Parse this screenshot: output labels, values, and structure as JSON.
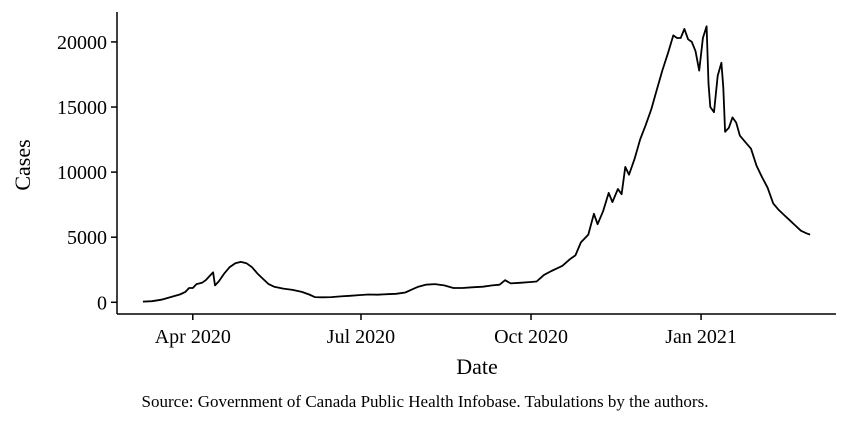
{
  "chart_data": {
    "type": "line",
    "xlabel": "Date",
    "ylabel": "Cases",
    "xlim": [
      "2020-02-20",
      "2021-03-15"
    ],
    "ylim": [
      -900,
      22300
    ],
    "x_ticks": [
      {
        "date": "2020-04-01",
        "label": "Apr 2020"
      },
      {
        "date": "2020-07-01",
        "label": "Jul 2020"
      },
      {
        "date": "2020-10-01",
        "label": "Oct 2020"
      },
      {
        "date": "2021-01-01",
        "label": "Jan 2021"
      }
    ],
    "y_ticks": [
      0,
      5000,
      10000,
      15000,
      20000
    ],
    "y_tick_labels": [
      "0",
      "5000",
      "10000",
      "15000",
      "20000"
    ],
    "grid": false,
    "line_color": "#000000",
    "series": [
      {
        "points": [
          [
            "2020-03-05",
            50
          ],
          [
            "2020-03-10",
            80
          ],
          [
            "2020-03-15",
            200
          ],
          [
            "2020-03-20",
            400
          ],
          [
            "2020-03-25",
            600
          ],
          [
            "2020-03-28",
            800
          ],
          [
            "2020-03-30",
            1100
          ],
          [
            "2020-04-01",
            1100
          ],
          [
            "2020-04-03",
            1400
          ],
          [
            "2020-04-06",
            1500
          ],
          [
            "2020-04-08",
            1700
          ],
          [
            "2020-04-10",
            2000
          ],
          [
            "2020-04-12",
            2300
          ],
          [
            "2020-04-13",
            1300
          ],
          [
            "2020-04-15",
            1600
          ],
          [
            "2020-04-18",
            2200
          ],
          [
            "2020-04-21",
            2700
          ],
          [
            "2020-04-24",
            3000
          ],
          [
            "2020-04-27",
            3100
          ],
          [
            "2020-04-30",
            3000
          ],
          [
            "2020-05-03",
            2700
          ],
          [
            "2020-05-06",
            2200
          ],
          [
            "2020-05-09",
            1800
          ],
          [
            "2020-05-12",
            1400
          ],
          [
            "2020-05-15",
            1200
          ],
          [
            "2020-05-20",
            1050
          ],
          [
            "2020-05-25",
            950
          ],
          [
            "2020-05-30",
            800
          ],
          [
            "2020-06-03",
            600
          ],
          [
            "2020-06-06",
            400
          ],
          [
            "2020-06-10",
            380
          ],
          [
            "2020-06-15",
            400
          ],
          [
            "2020-06-20",
            450
          ],
          [
            "2020-06-25",
            500
          ],
          [
            "2020-06-30",
            550
          ],
          [
            "2020-07-05",
            600
          ],
          [
            "2020-07-10",
            580
          ],
          [
            "2020-07-15",
            620
          ],
          [
            "2020-07-20",
            650
          ],
          [
            "2020-07-25",
            750
          ],
          [
            "2020-07-28",
            950
          ],
          [
            "2020-08-01",
            1200
          ],
          [
            "2020-08-05",
            1350
          ],
          [
            "2020-08-10",
            1400
          ],
          [
            "2020-08-15",
            1300
          ],
          [
            "2020-08-20",
            1100
          ],
          [
            "2020-08-25",
            1100
          ],
          [
            "2020-08-30",
            1150
          ],
          [
            "2020-09-05",
            1200
          ],
          [
            "2020-09-10",
            1300
          ],
          [
            "2020-09-14",
            1350
          ],
          [
            "2020-09-17",
            1700
          ],
          [
            "2020-09-20",
            1450
          ],
          [
            "2020-09-25",
            1500
          ],
          [
            "2020-09-30",
            1550
          ],
          [
            "2020-10-04",
            1600
          ],
          [
            "2020-10-08",
            2100
          ],
          [
            "2020-10-12",
            2400
          ],
          [
            "2020-10-15",
            2600
          ],
          [
            "2020-10-18",
            2800
          ],
          [
            "2020-10-22",
            3300
          ],
          [
            "2020-10-25",
            3600
          ],
          [
            "2020-10-28",
            4600
          ],
          [
            "2020-11-01",
            5200
          ],
          [
            "2020-11-04",
            6800
          ],
          [
            "2020-11-06",
            6000
          ],
          [
            "2020-11-09",
            7000
          ],
          [
            "2020-11-12",
            8400
          ],
          [
            "2020-11-14",
            7700
          ],
          [
            "2020-11-17",
            8700
          ],
          [
            "2020-11-19",
            8300
          ],
          [
            "2020-11-21",
            10400
          ],
          [
            "2020-11-23",
            9800
          ],
          [
            "2020-11-26",
            11000
          ],
          [
            "2020-11-29",
            12500
          ],
          [
            "2020-12-02",
            13600
          ],
          [
            "2020-12-05",
            14800
          ],
          [
            "2020-12-08",
            16300
          ],
          [
            "2020-12-11",
            17800
          ],
          [
            "2020-12-14",
            19100
          ],
          [
            "2020-12-17",
            20500
          ],
          [
            "2020-12-19",
            20300
          ],
          [
            "2020-12-21",
            20300
          ],
          [
            "2020-12-23",
            21000
          ],
          [
            "2020-12-25",
            20200
          ],
          [
            "2020-12-27",
            20000
          ],
          [
            "2020-12-29",
            19300
          ],
          [
            "2020-12-31",
            17800
          ],
          [
            "2021-01-02",
            20300
          ],
          [
            "2021-01-04",
            21200
          ],
          [
            "2021-01-05",
            16800
          ],
          [
            "2021-01-06",
            15000
          ],
          [
            "2021-01-08",
            14600
          ],
          [
            "2021-01-10",
            17400
          ],
          [
            "2021-01-12",
            18400
          ],
          [
            "2021-01-13",
            16500
          ],
          [
            "2021-01-14",
            13100
          ],
          [
            "2021-01-16",
            13400
          ],
          [
            "2021-01-18",
            14200
          ],
          [
            "2021-01-20",
            13800
          ],
          [
            "2021-01-22",
            12800
          ],
          [
            "2021-01-25",
            12300
          ],
          [
            "2021-01-28",
            11800
          ],
          [
            "2021-01-31",
            10500
          ],
          [
            "2021-02-03",
            9600
          ],
          [
            "2021-02-06",
            8800
          ],
          [
            "2021-02-09",
            7600
          ],
          [
            "2021-02-12",
            7100
          ],
          [
            "2021-02-15",
            6700
          ],
          [
            "2021-02-18",
            6300
          ],
          [
            "2021-02-21",
            5900
          ],
          [
            "2021-02-24",
            5500
          ],
          [
            "2021-02-27",
            5300
          ],
          [
            "2021-03-01",
            5200
          ]
        ]
      }
    ]
  },
  "source_note": "Source: Government of Canada Public Health Infobase. Tabulations by the authors."
}
